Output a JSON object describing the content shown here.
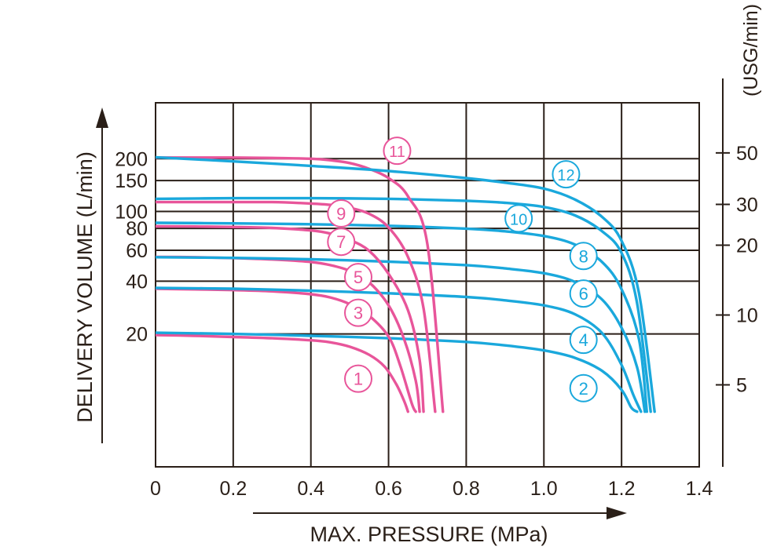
{
  "chart_data": {
    "type": "line",
    "xlabel": "MAX. PRESSURE (MPa)",
    "ylabel": "DELIVERY VOLUME (L/min)",
    "y2label": "(USG/min)",
    "x_scale": "linear",
    "y_scale": "log",
    "xlim": [
      0,
      1.4
    ],
    "x_ticks": [
      "0",
      "0.2",
      "0.4",
      "0.6",
      "0.8",
      "1.0",
      "1.2",
      "1.4"
    ],
    "y_ticks": [
      {
        "value": 20,
        "label": "20"
      },
      {
        "value": 40,
        "label": "40"
      },
      {
        "value": 60,
        "label": "60"
      },
      {
        "value": 80,
        "label": "80"
      },
      {
        "value": 100,
        "label": "100"
      },
      {
        "value": 150,
        "label": "150"
      },
      {
        "value": 200,
        "label": "200"
      }
    ],
    "y2_ticks": [
      {
        "value": 5,
        "label": "5"
      },
      {
        "value": 10,
        "label": "10"
      },
      {
        "value": 20,
        "label": "20"
      },
      {
        "value": 30,
        "label": "30"
      },
      {
        "value": 50,
        "label": "50"
      }
    ],
    "grid": true,
    "colors": {
      "pink": "#e8559a",
      "blue": "#1aa8dc",
      "grid": "#2a1f18"
    },
    "series": [
      {
        "name": "1",
        "color": "#e8559a",
        "points": [
          [
            0,
            19.7
          ],
          [
            0.1,
            19.5
          ],
          [
            0.2,
            19.2
          ],
          [
            0.3,
            18.9
          ],
          [
            0.4,
            18.4
          ],
          [
            0.45,
            17.9
          ],
          [
            0.5,
            16.9
          ],
          [
            0.55,
            15.2
          ],
          [
            0.59,
            13.0
          ],
          [
            0.62,
            10.3
          ],
          [
            0.64,
            8.3
          ],
          [
            0.65,
            7.2
          ]
        ]
      },
      {
        "name": "2",
        "color": "#1aa8dc",
        "points": [
          [
            0,
            20.3
          ],
          [
            0.2,
            20.0
          ],
          [
            0.4,
            19.5
          ],
          [
            0.6,
            18.9
          ],
          [
            0.8,
            18.0
          ],
          [
            0.9,
            17.2
          ],
          [
            1.0,
            16.1
          ],
          [
            1.08,
            14.6
          ],
          [
            1.15,
            12.3
          ],
          [
            1.2,
            9.6
          ],
          [
            1.225,
            7.6
          ],
          [
            1.24,
            7.2
          ]
        ]
      },
      {
        "name": "3",
        "color": "#e8559a",
        "points": [
          [
            0,
            36.2
          ],
          [
            0.1,
            35.9
          ],
          [
            0.2,
            35.6
          ],
          [
            0.3,
            35.0
          ],
          [
            0.4,
            33.7
          ],
          [
            0.45,
            32.3
          ],
          [
            0.5,
            29.6
          ],
          [
            0.55,
            25.4
          ],
          [
            0.6,
            19.3
          ],
          [
            0.63,
            13.2
          ],
          [
            0.66,
            8.0
          ],
          [
            0.67,
            7.2
          ]
        ]
      },
      {
        "name": "4",
        "color": "#1aa8dc",
        "points": [
          [
            0,
            36.6
          ],
          [
            0.2,
            36.2
          ],
          [
            0.4,
            35.3
          ],
          [
            0.6,
            34.1
          ],
          [
            0.8,
            32.5
          ],
          [
            0.9,
            31.1
          ],
          [
            1.0,
            29.1
          ],
          [
            1.08,
            25.9
          ],
          [
            1.15,
            20.2
          ],
          [
            1.2,
            13.3
          ],
          [
            1.23,
            9.0
          ],
          [
            1.25,
            7.2
          ]
        ]
      },
      {
        "name": "5",
        "color": "#e8559a",
        "points": [
          [
            0,
            55.0
          ],
          [
            0.1,
            54.8
          ],
          [
            0.2,
            54.2
          ],
          [
            0.3,
            53.2
          ],
          [
            0.4,
            51.5
          ],
          [
            0.45,
            49.4
          ],
          [
            0.5,
            45.8
          ],
          [
            0.55,
            39.4
          ],
          [
            0.6,
            29.1
          ],
          [
            0.64,
            18.7
          ],
          [
            0.67,
            10.8
          ],
          [
            0.68,
            7.2
          ]
        ]
      },
      {
        "name": "6",
        "color": "#1aa8dc",
        "points": [
          [
            0,
            54.8
          ],
          [
            0.2,
            54.3
          ],
          [
            0.4,
            53.3
          ],
          [
            0.6,
            51.7
          ],
          [
            0.8,
            49.4
          ],
          [
            0.9,
            47.3
          ],
          [
            1.0,
            44.4
          ],
          [
            1.08,
            39.6
          ],
          [
            1.15,
            31.4
          ],
          [
            1.2,
            21.7
          ],
          [
            1.24,
            12.9
          ],
          [
            1.26,
            7.2
          ]
        ]
      },
      {
        "name": "7",
        "color": "#e8559a",
        "points": [
          [
            0,
            82.2
          ],
          [
            0.1,
            82.0
          ],
          [
            0.2,
            81.5
          ],
          [
            0.3,
            80.5
          ],
          [
            0.4,
            77.9
          ],
          [
            0.45,
            74.8
          ],
          [
            0.5,
            68.9
          ],
          [
            0.55,
            59.6
          ],
          [
            0.6,
            44.0
          ],
          [
            0.65,
            27.3
          ],
          [
            0.68,
            14.2
          ],
          [
            0.69,
            7.2
          ]
        ]
      },
      {
        "name": "8",
        "color": "#1aa8dc",
        "points": [
          [
            0,
            86.1
          ],
          [
            0.2,
            85.5
          ],
          [
            0.4,
            84.5
          ],
          [
            0.6,
            82.8
          ],
          [
            0.8,
            79.8
          ],
          [
            0.9,
            77.0
          ],
          [
            1.0,
            72.4
          ],
          [
            1.08,
            64.7
          ],
          [
            1.15,
            51.4
          ],
          [
            1.2,
            36.0
          ],
          [
            1.245,
            18.6
          ],
          [
            1.265,
            7.2
          ]
        ]
      },
      {
        "name": "9",
        "color": "#e8559a",
        "points": [
          [
            0,
            113
          ],
          [
            0.1,
            113
          ],
          [
            0.2,
            113
          ],
          [
            0.3,
            113
          ],
          [
            0.4,
            111
          ],
          [
            0.45,
            109
          ],
          [
            0.5,
            105
          ],
          [
            0.55,
            97
          ],
          [
            0.6,
            81
          ],
          [
            0.65,
            55
          ],
          [
            0.69,
            28
          ],
          [
            0.72,
            7.2
          ]
        ]
      },
      {
        "name": "10",
        "color": "#1aa8dc",
        "points": [
          [
            0,
            118
          ],
          [
            0.2,
            119
          ],
          [
            0.4,
            119
          ],
          [
            0.6,
            118
          ],
          [
            0.8,
            115
          ],
          [
            0.9,
            112
          ],
          [
            1.0,
            106
          ],
          [
            1.08,
            95
          ],
          [
            1.15,
            77
          ],
          [
            1.2,
            58
          ],
          [
            1.24,
            30
          ],
          [
            1.275,
            7.2
          ]
        ]
      },
      {
        "name": "11",
        "color": "#e8559a",
        "points": [
          [
            0,
            203
          ],
          [
            0.1,
            203
          ],
          [
            0.2,
            203
          ],
          [
            0.3,
            202
          ],
          [
            0.4,
            200
          ],
          [
            0.45,
            196
          ],
          [
            0.5,
            189
          ],
          [
            0.55,
            175
          ],
          [
            0.6,
            155
          ],
          [
            0.65,
            122
          ],
          [
            0.7,
            65
          ],
          [
            0.74,
            7.2
          ]
        ]
      },
      {
        "name": "12",
        "color": "#1aa8dc",
        "points": [
          [
            0,
            204
          ],
          [
            0.2,
            193
          ],
          [
            0.4,
            182
          ],
          [
            0.6,
            170
          ],
          [
            0.8,
            155
          ],
          [
            0.9,
            146
          ],
          [
            1.0,
            135
          ],
          [
            1.08,
            117
          ],
          [
            1.15,
            93
          ],
          [
            1.2,
            68
          ],
          [
            1.245,
            34
          ],
          [
            1.285,
            7.2
          ]
        ]
      }
    ],
    "labels": [
      {
        "text": "1",
        "color": "#e8559a",
        "x": 0.522,
        "y": 11.1
      },
      {
        "text": "3",
        "color": "#e8559a",
        "x": 0.522,
        "y": 26.4
      },
      {
        "text": "5",
        "color": "#e8559a",
        "x": 0.522,
        "y": 42.2
      },
      {
        "text": "7",
        "color": "#e8559a",
        "x": 0.478,
        "y": 67.1
      },
      {
        "text": "9",
        "color": "#e8559a",
        "x": 0.478,
        "y": 97.4
      },
      {
        "text": "11",
        "color": "#e8559a",
        "x": 0.622,
        "y": 222
      },
      {
        "text": "2",
        "color": "#1aa8dc",
        "x": 1.102,
        "y": 9.8
      },
      {
        "text": "4",
        "color": "#1aa8dc",
        "x": 1.102,
        "y": 18.5
      },
      {
        "text": "6",
        "color": "#1aa8dc",
        "x": 1.102,
        "y": 34.0
      },
      {
        "text": "8",
        "color": "#1aa8dc",
        "x": 1.102,
        "y": 55.7
      },
      {
        "text": "10",
        "color": "#1aa8dc",
        "x": 0.935,
        "y": 91.2
      },
      {
        "text": "12",
        "color": "#1aa8dc",
        "x": 1.057,
        "y": 163
      }
    ]
  }
}
